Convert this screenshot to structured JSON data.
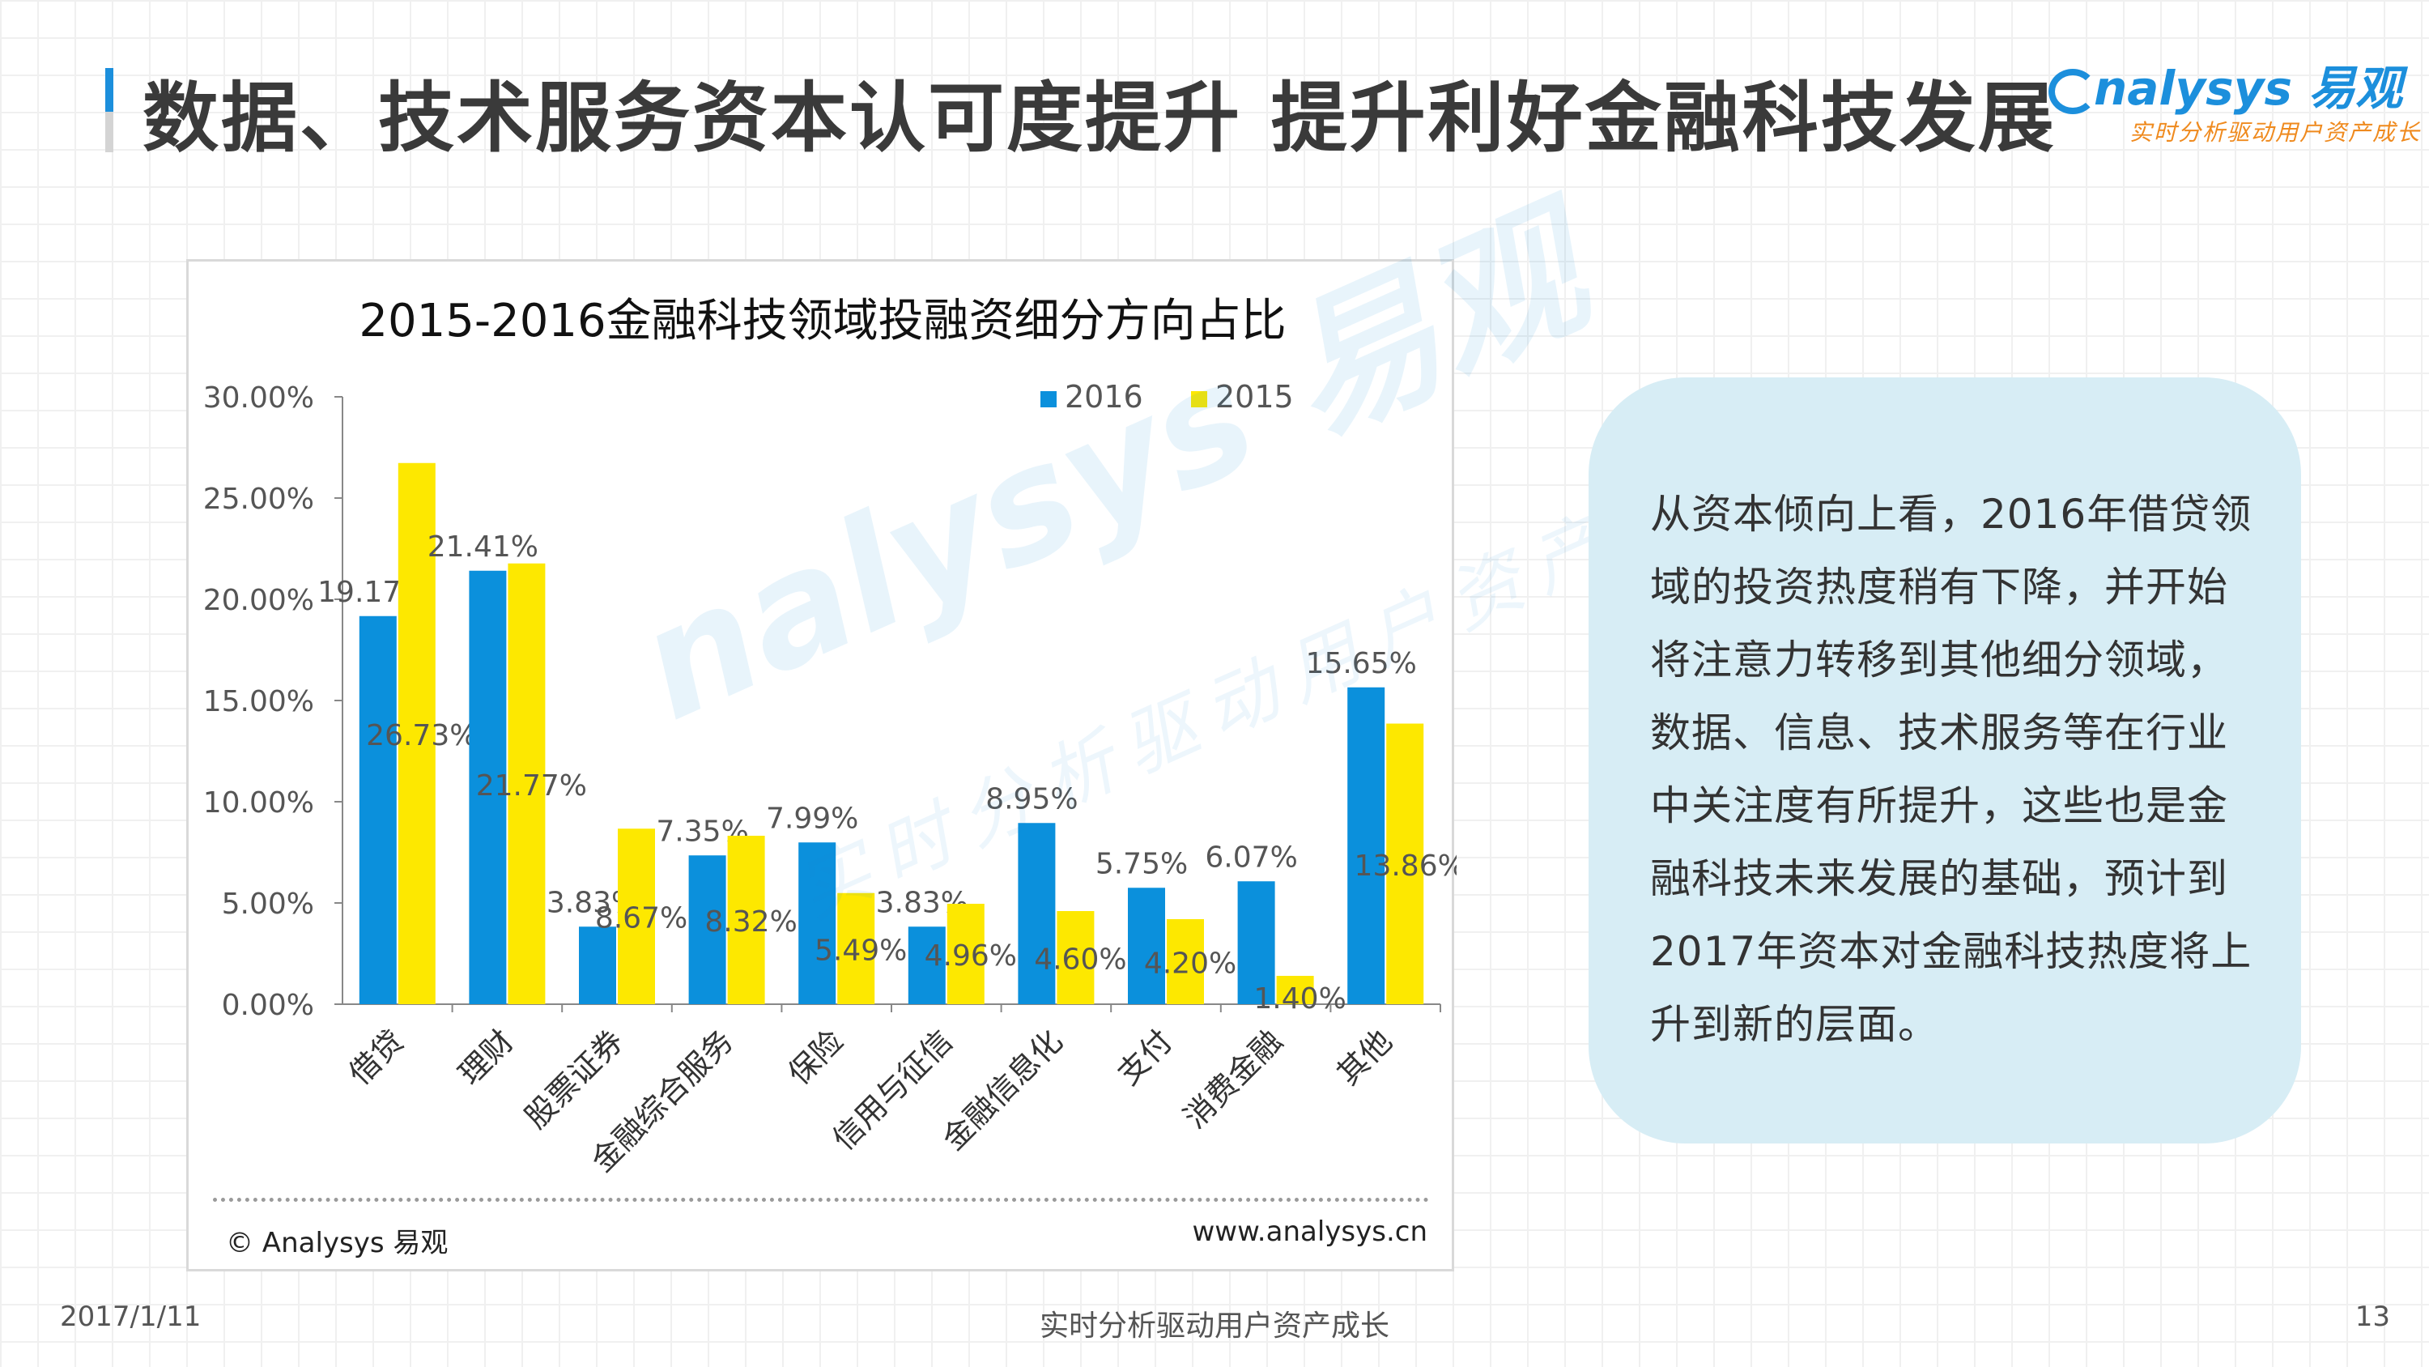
{
  "header": {
    "title": "数据、技术服务资本认可度提升  提升利好金融科技发展",
    "logo_main": "nalysys 易观",
    "logo_sub": "实时分析驱动用户资产成长"
  },
  "colors": {
    "series_2016": "#0b90dc",
    "series_2015": "#fde800",
    "accent": "#1c8fdc"
  },
  "chart_data": {
    "type": "bar",
    "title": "2015-2016金融科技领域投融资细分方向占比",
    "categories": [
      "借贷",
      "理财",
      "股票证券",
      "金融综合服务",
      "保险",
      "信用与征信",
      "金融信息化",
      "支付",
      "消费金融",
      "其他"
    ],
    "series": [
      {
        "name": "2016",
        "values": [
          19.17,
          21.41,
          3.83,
          7.35,
          7.99,
          3.83,
          8.95,
          5.75,
          6.07,
          15.65
        ],
        "labels": [
          "19.17%",
          "21.41%",
          "3.83%",
          "7.35%",
          "7.99%",
          "3.83%",
          "8.95%",
          "5.75%",
          "6.07%",
          "15.65%"
        ]
      },
      {
        "name": "2015",
        "values": [
          26.73,
          21.77,
          8.67,
          8.32,
          5.49,
          4.96,
          4.6,
          4.2,
          1.4,
          13.86
        ],
        "labels": [
          "26.73%",
          "21.77%",
          "8.67%",
          "8.32%",
          "5.49%",
          "4.96%",
          "4.60%",
          "4.20%",
          "1.40%",
          "13.86%"
        ]
      }
    ],
    "yticks": [
      "0.00%",
      "5.00%",
      "10.00%",
      "15.00%",
      "20.00%",
      "25.00%",
      "30.00%"
    ],
    "ylim": [
      0,
      30
    ],
    "legend_position": "top-right",
    "grid": false
  },
  "chart_footer": {
    "copyright": "© Analysys 易观",
    "website": "www.analysys.cn"
  },
  "watermark": {
    "text": "nalysys 易观",
    "subtext": "实时分析驱动用户资产成长"
  },
  "callout": {
    "text": "从资本倾向上看，2016年借贷领域的投资热度稍有下降，并开始将注意力转移到其他细分领域，数据、信息、技术服务等在行业中关注度有所提升，这些也是金融科技未来发展的基础，预计到2017年资本对金融科技热度将上升到新的层面。"
  },
  "footer": {
    "date": "2017/1/11",
    "slogan": "实时分析驱动用户资产成长",
    "page": "13"
  }
}
